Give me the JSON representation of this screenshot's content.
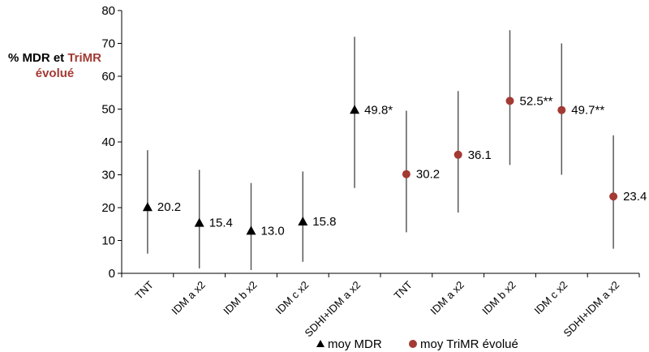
{
  "chart_data": {
    "type": "scatter",
    "ylabel_part1": "% MDR et ",
    "ylabel_part2": "TriMR",
    "ylabel_part3": "évolué",
    "ylim": [
      0,
      80
    ],
    "yticks": [
      "0",
      "10",
      "20",
      "30",
      "40",
      "50",
      "60",
      "70",
      "80"
    ],
    "ytick_values": [
      0,
      10,
      20,
      30,
      40,
      50,
      60,
      70,
      80
    ],
    "categories": [
      "TNT",
      "IDM a x2",
      "IDM b x2",
      "IDM c x2",
      "SDHI+IDM a x2",
      "TNT",
      "IDM a x2",
      "IDM b x2",
      "IDM c x2",
      "SDHI+IDM a x2"
    ],
    "series": [
      {
        "name": "moy MDR",
        "marker": "triangle",
        "color": "#000000",
        "category_index": [
          0,
          1,
          2,
          3,
          4
        ],
        "values": [
          20.2,
          15.4,
          13.0,
          15.8,
          49.8
        ],
        "labels": [
          "20.2",
          "15.4",
          "13.0",
          "15.8",
          "49.8*"
        ],
        "low": [
          6,
          1.5,
          1,
          3.5,
          26
        ],
        "high": [
          37.5,
          31.5,
          27.5,
          31,
          72
        ]
      },
      {
        "name": "moy TriMR évolué",
        "marker": "circle",
        "color": "#a33a33",
        "category_index": [
          5,
          6,
          7,
          8,
          9
        ],
        "values": [
          30.2,
          36.1,
          52.5,
          49.7,
          23.4
        ],
        "labels": [
          "30.2",
          "36.1",
          "52.5**",
          "49.7**",
          "23.4"
        ],
        "low": [
          12.5,
          18.5,
          33,
          30,
          7.5
        ],
        "high": [
          49.5,
          55.5,
          74,
          70,
          42
        ]
      }
    ],
    "legend_position": "bottom",
    "grid": false
  }
}
